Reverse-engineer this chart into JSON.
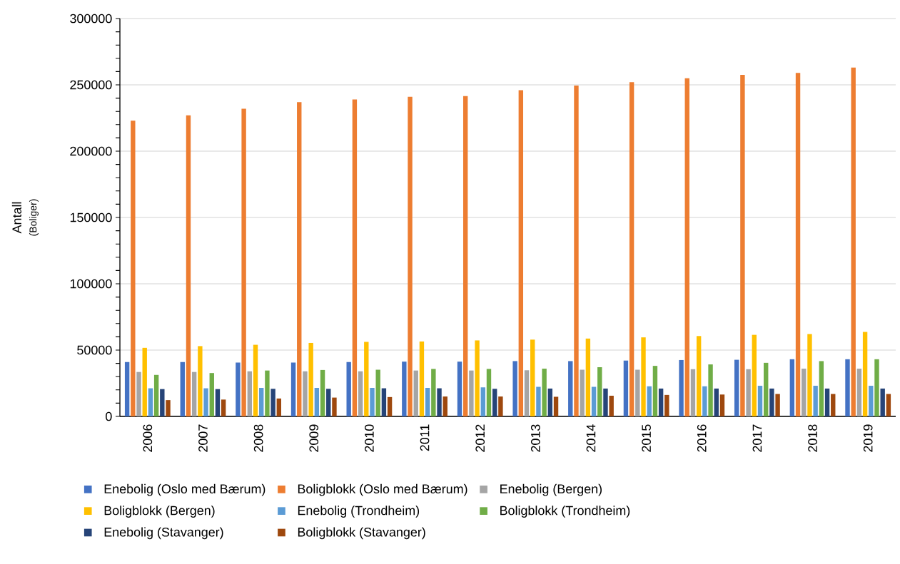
{
  "chart_data": {
    "type": "bar",
    "ylabel": "Antall",
    "annotations": [
      "(Boliger)"
    ],
    "categories": [
      "2006",
      "2007",
      "2008",
      "2009",
      "2010",
      "2011",
      "2012",
      "2013",
      "2014",
      "2015",
      "2016",
      "2017",
      "2018",
      "2019"
    ],
    "ylim": [
      0,
      300000
    ],
    "yticks": [
      0,
      50000,
      100000,
      150000,
      200000,
      250000,
      300000
    ],
    "grid": "y",
    "legend": "bottom",
    "series": [
      {
        "name": "Enebolig (Oslo med Bærum)",
        "color": "#4472c4",
        "values": [
          41000,
          41000,
          40600,
          40600,
          41000,
          41300,
          41300,
          41700,
          41700,
          42100,
          42500,
          42700,
          43100,
          43100
        ]
      },
      {
        "name": "Boligblokk (Oslo med Bærum)",
        "color": "#ed7d31",
        "values": [
          223000,
          227000,
          232000,
          237000,
          239000,
          241000,
          241500,
          246000,
          249500,
          252000,
          255000,
          257500,
          259000,
          263000
        ]
      },
      {
        "name": "Enebolig (Bergen)",
        "color": "#a5a5a5",
        "values": [
          33500,
          33500,
          34000,
          34000,
          34000,
          34600,
          34600,
          34800,
          35200,
          35200,
          35600,
          35600,
          36000,
          36000
        ]
      },
      {
        "name": "Boligblokk (Bergen)",
        "color": "#ffc000",
        "values": [
          51700,
          53000,
          54000,
          55400,
          56200,
          56500,
          57300,
          57900,
          58700,
          59600,
          60600,
          61500,
          62100,
          63700
        ]
      },
      {
        "name": "Enebolig (Trondheim)",
        "color": "#5b9bd5",
        "values": [
          21200,
          21200,
          21500,
          21500,
          21500,
          21500,
          21900,
          22300,
          22300,
          22700,
          22700,
          23100,
          23100,
          23100
        ]
      },
      {
        "name": "Boligblokk (Trondheim)",
        "color": "#70ad47",
        "values": [
          31300,
          32700,
          34600,
          35000,
          35200,
          35800,
          35800,
          36000,
          37100,
          38100,
          39200,
          40400,
          41700,
          43100
        ]
      },
      {
        "name": "Enebolig (Stavanger)",
        "color": "#264478",
        "values": [
          20600,
          20600,
          20800,
          20800,
          21200,
          21200,
          20800,
          21000,
          21000,
          21000,
          21000,
          21000,
          21000,
          21000
        ]
      },
      {
        "name": "Boligblokk (Stavanger)",
        "color": "#9e480e",
        "values": [
          12300,
          12700,
          13500,
          14200,
          14600,
          15000,
          15000,
          14800,
          15600,
          16200,
          16500,
          16900,
          16900,
          16900
        ]
      }
    ]
  }
}
